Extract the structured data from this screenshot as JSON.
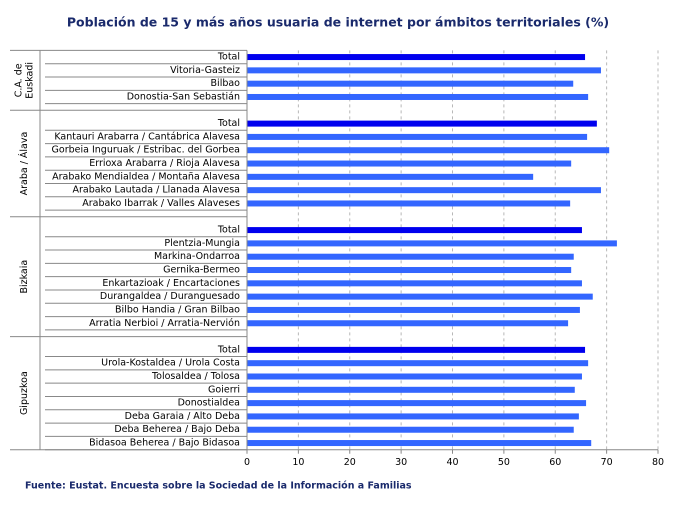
{
  "chart_data": {
    "type": "bar",
    "orientation": "horizontal",
    "title": "Población de 15 y más años usuaria de internet por ámbitos territoriales (%)",
    "source": "Fuente: Eustat. Encuesta sobre la Sociedad de la Información a Familias",
    "color": "#3366ff",
    "total_color": "#0000ee",
    "grid": true,
    "xlim": [
      0,
      80
    ],
    "xticks": [
      0,
      10,
      20,
      30,
      40,
      50,
      60,
      70,
      80
    ],
    "groups": [
      {
        "label": [
          "C.A. de",
          "Euskadi"
        ],
        "categories": [
          "Total",
          "Vitoria-Gasteiz",
          "Bilbao",
          "Donostia-San Sebastián"
        ],
        "values": [
          65.8,
          68.9,
          63.5,
          66.4
        ]
      },
      {
        "label": [
          "Araba / Álava"
        ],
        "categories": [
          "Total",
          "Kantauri Arabarra / Cantábrica Alavesa",
          "Gorbeia Inguruak / Estribac. del Gorbea",
          "Errioxa Arabarra / Rioja Alavesa",
          "Arabako Mendialdea / Montaña Alavesa",
          "Arabako Lautada / Llanada Alavesa",
          "Arabako Ibarrak / Valles Alaveses"
        ],
        "values": [
          68.1,
          66.2,
          70.5,
          63.1,
          55.7,
          68.9,
          62.9
        ]
      },
      {
        "label": [
          "Bizkaia"
        ],
        "categories": [
          "Total",
          "Plentzia-Mungia",
          "Markina-Ondarroa",
          "Gernika-Bermeo",
          "Enkartazioak / Encartaciones",
          "Durangaldea / Duranguesado",
          "Bilbo Handia / Gran Bilbao",
          "Arratia Nerbioi / Arratia-Nervión"
        ],
        "values": [
          65.2,
          72.0,
          63.6,
          63.1,
          65.2,
          67.3,
          64.8,
          62.5
        ]
      },
      {
        "label": [
          "Gipuzkoa"
        ],
        "categories": [
          "Total",
          "Urola-Kostaldea / Urola Costa",
          "Tolosaldea / Tolosa",
          "Goierri",
          "Donostialdea",
          "Deba Garaia / Alto Deba",
          "Deba Beherea / Bajo Deba",
          "Bidasoa Beherea / Bajo Bidasoa"
        ],
        "values": [
          65.8,
          66.4,
          65.2,
          63.8,
          66.0,
          64.6,
          63.6,
          67.0
        ]
      }
    ]
  }
}
